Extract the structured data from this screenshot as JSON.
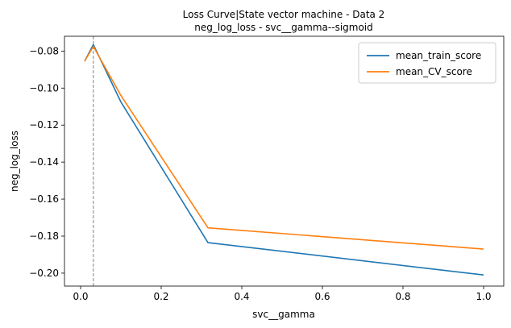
{
  "chart_data": {
    "type": "line",
    "title": "Loss Curve|State vector machine - Data 2",
    "subtitle": "neg_log_loss - svc__gamma--sigmoid",
    "xlabel": "svc__gamma",
    "ylabel": "neg_log_loss",
    "xlim": [
      -0.04,
      1.05
    ],
    "ylim": [
      -0.207,
      -0.072
    ],
    "xticks": [
      0.0,
      0.2,
      0.4,
      0.6,
      0.8,
      1.0
    ],
    "xtick_labels": [
      "0.0",
      "0.2",
      "0.4",
      "0.6",
      "0.8",
      "1.0"
    ],
    "yticks": [
      -0.08,
      -0.1,
      -0.12,
      -0.14,
      -0.16,
      -0.18,
      -0.2
    ],
    "ytick_labels": [
      "−0.08",
      "−0.10",
      "−0.12",
      "−0.14",
      "−0.16",
      "−0.18",
      "−0.20"
    ],
    "grid": false,
    "legend_position": "top-right",
    "vline": {
      "x": 0.0316,
      "style": "dashed",
      "color": "#808080"
    },
    "series": [
      {
        "name": "mean_train_score",
        "color": "#1f77b4",
        "x": [
          0.01,
          0.0316,
          0.1,
          0.316,
          1.0
        ],
        "y": [
          -0.0855,
          -0.0765,
          -0.1075,
          -0.1835,
          -0.201
        ]
      },
      {
        "name": "mean_CV_score",
        "color": "#ff7f0e",
        "x": [
          0.01,
          0.0316,
          0.1,
          0.316,
          1.0
        ],
        "y": [
          -0.0855,
          -0.0775,
          -0.104,
          -0.1755,
          -0.187
        ]
      }
    ]
  }
}
